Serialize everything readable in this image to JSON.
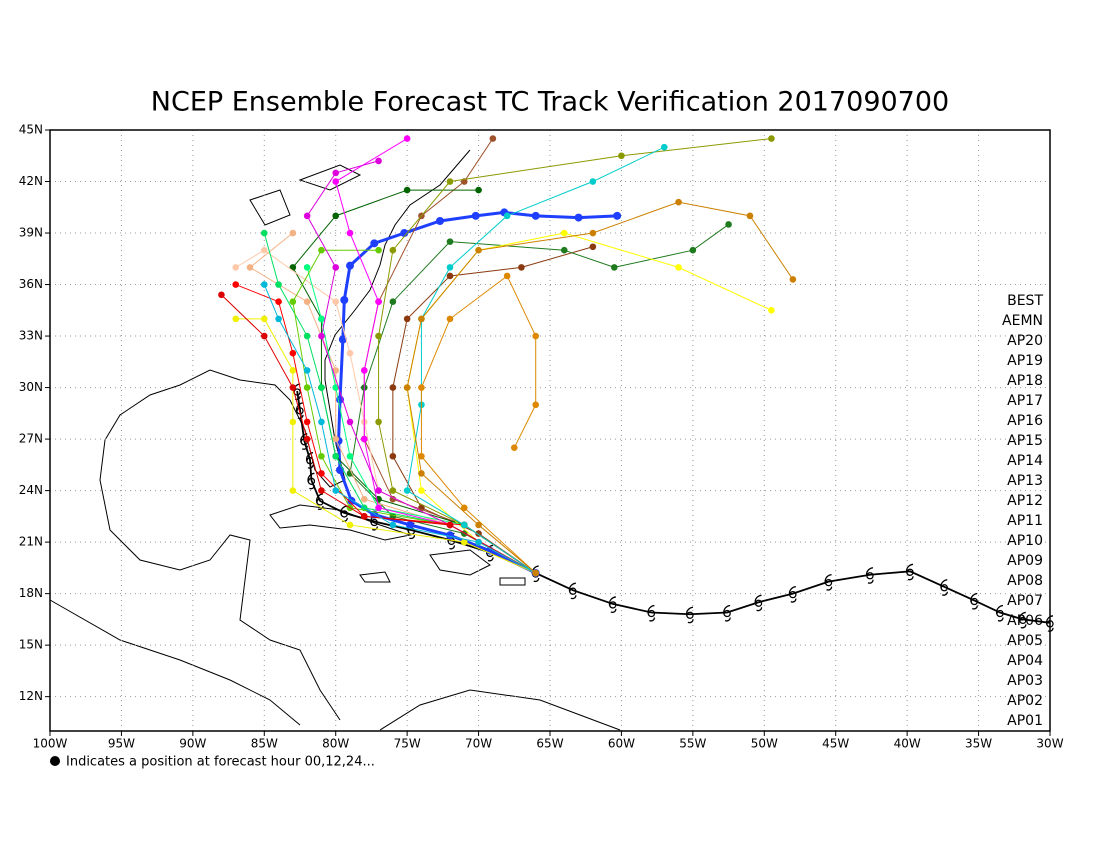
{
  "chart_data": {
    "type": "line",
    "title": "NCEP Ensemble Forecast TC Track Verification 2017090700",
    "note": "Indicates a position at forecast hour 00,12,24...",
    "xlim": [
      -100,
      -30
    ],
    "ylim": [
      10,
      45
    ],
    "xticks": [
      {
        "value": -100,
        "label": "100W"
      },
      {
        "value": -95,
        "label": "95W"
      },
      {
        "value": -90,
        "label": "90W"
      },
      {
        "value": -85,
        "label": "85W"
      },
      {
        "value": -80,
        "label": "80W"
      },
      {
        "value": -75,
        "label": "75W"
      },
      {
        "value": -70,
        "label": "70W"
      },
      {
        "value": -65,
        "label": "65W"
      },
      {
        "value": -60,
        "label": "60W"
      },
      {
        "value": -55,
        "label": "55W"
      },
      {
        "value": -50,
        "label": "50W"
      },
      {
        "value": -45,
        "label": "45W"
      },
      {
        "value": -40,
        "label": "40W"
      },
      {
        "value": -35,
        "label": "35W"
      },
      {
        "value": -30,
        "label": "30W"
      }
    ],
    "yticks": [
      {
        "value": 12,
        "label": "12N"
      },
      {
        "value": 15,
        "label": "15N"
      },
      {
        "value": 18,
        "label": "18N"
      },
      {
        "value": 21,
        "label": "21N"
      },
      {
        "value": 24,
        "label": "24N"
      },
      {
        "value": 27,
        "label": "27N"
      },
      {
        "value": 30,
        "label": "30N"
      },
      {
        "value": 33,
        "label": "33N"
      },
      {
        "value": 36,
        "label": "36N"
      },
      {
        "value": 39,
        "label": "39N"
      },
      {
        "value": 42,
        "label": "42N"
      },
      {
        "value": 45,
        "label": "45N"
      }
    ],
    "grid": true,
    "series": [
      {
        "name": "BEST",
        "color": "#000000",
        "x": [
          -30,
          -31.9,
          -33.5,
          -35.3,
          -37.4,
          -39.8,
          -42.6,
          -45.5,
          -48,
          -50.4,
          -52.6,
          -55.2,
          -57.9,
          -60.6,
          -63.4,
          -66,
          -69.2,
          -71.9,
          -74.7,
          -77.3,
          -79.4,
          -81.1,
          -81.7,
          -81.8,
          -82.2,
          -82.5,
          -82.7
        ],
        "values": [
          16.3,
          16.5,
          16.9,
          17.6,
          18.4,
          19.3,
          19.1,
          18.7,
          18,
          17.5,
          16.9,
          16.8,
          16.9,
          17.4,
          18.2,
          19.2,
          20.4,
          21.1,
          21.7,
          22.2,
          22.7,
          23.4,
          24.6,
          25.8,
          26.9,
          28.7,
          29.8
        ]
      },
      {
        "name": "AEMN",
        "color": "#1f3fff",
        "x": [
          -66,
          -69.2,
          -72,
          -74.8,
          -77.3,
          -78.9,
          -79.7,
          -79.8,
          -79.7,
          -79.5,
          -79.4,
          -79,
          -77.3,
          -75.2,
          -72.7,
          -70.2,
          -68.2,
          -66,
          -63,
          -60.3
        ],
        "values": [
          19.2,
          20.5,
          21.4,
          22,
          22.6,
          23.4,
          25.2,
          26.9,
          29.3,
          32.8,
          35.1,
          37.1,
          38.4,
          39,
          39.7,
          40,
          40.2,
          40,
          39.9,
          40
        ]
      },
      {
        "name": "AP20",
        "color": "#8b3a0f",
        "x": [
          -66,
          -70,
          -74,
          -76,
          -76,
          -75,
          -72,
          -67,
          -62
        ],
        "values": [
          19.2,
          21.5,
          23,
          26,
          30,
          34,
          36.5,
          37,
          38.2
        ]
      },
      {
        "name": "AP19",
        "color": "#a0522d",
        "x": [
          -66,
          -71,
          -76,
          -78,
          -78,
          -77,
          -74,
          -71,
          -69
        ],
        "values": [
          19.2,
          22,
          23.5,
          27,
          31,
          35,
          40,
          42,
          44.5
        ]
      },
      {
        "name": "AP18",
        "color": "#006400",
        "x": [
          -66,
          -71,
          -77,
          -80,
          -81,
          -81,
          -83,
          -80,
          -75,
          -70
        ],
        "values": [
          19.2,
          22,
          23.5,
          26,
          30,
          34,
          37,
          40,
          41.5,
          41.5
        ]
      },
      {
        "name": "AP17",
        "color": "#1e7b1e",
        "x": [
          -66,
          -71,
          -76,
          -79,
          -78,
          -76,
          -72,
          -64,
          -60.5,
          -55,
          -52.5
        ],
        "values": [
          19.2,
          21.5,
          22.5,
          25,
          30,
          35,
          38.5,
          38,
          37,
          38,
          39.5
        ]
      },
      {
        "name": "AP16",
        "color": "#f4b183",
        "x": [
          -66,
          -72,
          -78,
          -80,
          -80,
          -82,
          -86,
          -83
        ],
        "values": [
          19.2,
          22,
          23.5,
          27,
          31,
          35,
          37,
          39
        ]
      },
      {
        "name": "AP15",
        "color": "#ffc8a8",
        "x": [
          -66,
          -72,
          -77,
          -78,
          -79,
          -80,
          -85,
          -87
        ],
        "values": [
          19.2,
          22,
          24,
          28,
          32,
          35,
          38,
          37
        ]
      },
      {
        "name": "AP14",
        "color": "#ffff00",
        "x": [
          -66,
          -70,
          -74,
          -75,
          -74,
          -70,
          -64,
          -56,
          -49.5
        ],
        "values": [
          19.2,
          21,
          24,
          30,
          34,
          38,
          39,
          37,
          34.5
        ]
      },
      {
        "name": "AP13",
        "color": "#f0f000",
        "x": [
          -66,
          -71,
          -79,
          -83,
          -83,
          -83,
          -85,
          -87
        ],
        "values": [
          19.2,
          21,
          22,
          24,
          28,
          31,
          34,
          34
        ]
      },
      {
        "name": "AP12",
        "color": "#00e060",
        "x": [
          -66,
          -72,
          -78,
          -80,
          -81,
          -82,
          -84,
          -85
        ],
        "values": [
          19.2,
          22,
          23,
          26,
          30,
          33,
          36,
          39
        ]
      },
      {
        "name": "AP11",
        "color": "#00ff80",
        "x": [
          -66,
          -71,
          -77,
          -79,
          -80,
          -81,
          -82
        ],
        "values": [
          19.2,
          22,
          23,
          26,
          30,
          34,
          37
        ]
      },
      {
        "name": "AP10",
        "color": "#66cc00",
        "x": [
          -66,
          -72,
          -79,
          -81,
          -82,
          -83,
          -81,
          -77
        ],
        "values": [
          19.2,
          22,
          23,
          26,
          30,
          35,
          38,
          38
        ]
      },
      {
        "name": "AP09",
        "color": "#8a9a00",
        "x": [
          -66,
          -71,
          -76,
          -77,
          -77,
          -76,
          -72,
          -60,
          -49.5
        ],
        "values": [
          19.2,
          22,
          24,
          28,
          33,
          38,
          42,
          43.5,
          44.5
        ]
      },
      {
        "name": "AP08",
        "color": "#ff00ff",
        "x": [
          -66,
          -72,
          -77,
          -78,
          -78,
          -77,
          -79,
          -80,
          -75
        ],
        "values": [
          19.2,
          22,
          23,
          27,
          31,
          35,
          39,
          42,
          44.5
        ]
      },
      {
        "name": "AP07",
        "color": "#dd00dd",
        "x": [
          -66,
          -72,
          -77,
          -79,
          -81,
          -80,
          -82,
          -80,
          -77
        ],
        "values": [
          19.2,
          22,
          24,
          28,
          33,
          37,
          40,
          42.5,
          43.2
        ]
      },
      {
        "name": "AP06",
        "color": "#ff0000",
        "x": [
          -66,
          -71,
          -78,
          -81,
          -82,
          -83,
          -84,
          -87
        ],
        "values": [
          19.2,
          22,
          22.5,
          25,
          28,
          32,
          35,
          36
        ]
      },
      {
        "name": "AP05",
        "color": "#dd0000",
        "x": [
          -66,
          -72,
          -78,
          -81,
          -82,
          -83,
          -85,
          -88
        ],
        "values": [
          19.2,
          22,
          22.5,
          24,
          27,
          30,
          33,
          35.4
        ]
      },
      {
        "name": "AP04",
        "color": "#00cccc",
        "x": [
          -66,
          -71,
          -75,
          -74,
          -74,
          -72,
          -68,
          -62,
          -57
        ],
        "values": [
          19.2,
          22,
          24,
          29,
          34,
          37,
          40,
          42,
          44
        ]
      },
      {
        "name": "AP03",
        "color": "#00b8d8",
        "x": [
          -66,
          -70,
          -76,
          -80,
          -81,
          -82,
          -84,
          -85
        ],
        "values": [
          19.2,
          21,
          22,
          24,
          28,
          31,
          34,
          36
        ]
      },
      {
        "name": "AP02",
        "color": "#dd8800",
        "x": [
          -66,
          -71,
          -74,
          -74,
          -72,
          -68,
          -66,
          -66,
          -67.5
        ],
        "values": [
          19.2,
          23,
          26,
          30,
          34,
          36.5,
          33,
          29,
          26.5
        ]
      },
      {
        "name": "AP01",
        "color": "#cc8000",
        "x": [
          -66,
          -70,
          -74,
          -75,
          -74,
          -70,
          -62,
          -56,
          -51,
          -48
        ],
        "values": [
          19.2,
          22,
          25,
          30,
          34,
          38,
          39,
          40.8,
          40,
          36.3
        ]
      }
    ]
  }
}
